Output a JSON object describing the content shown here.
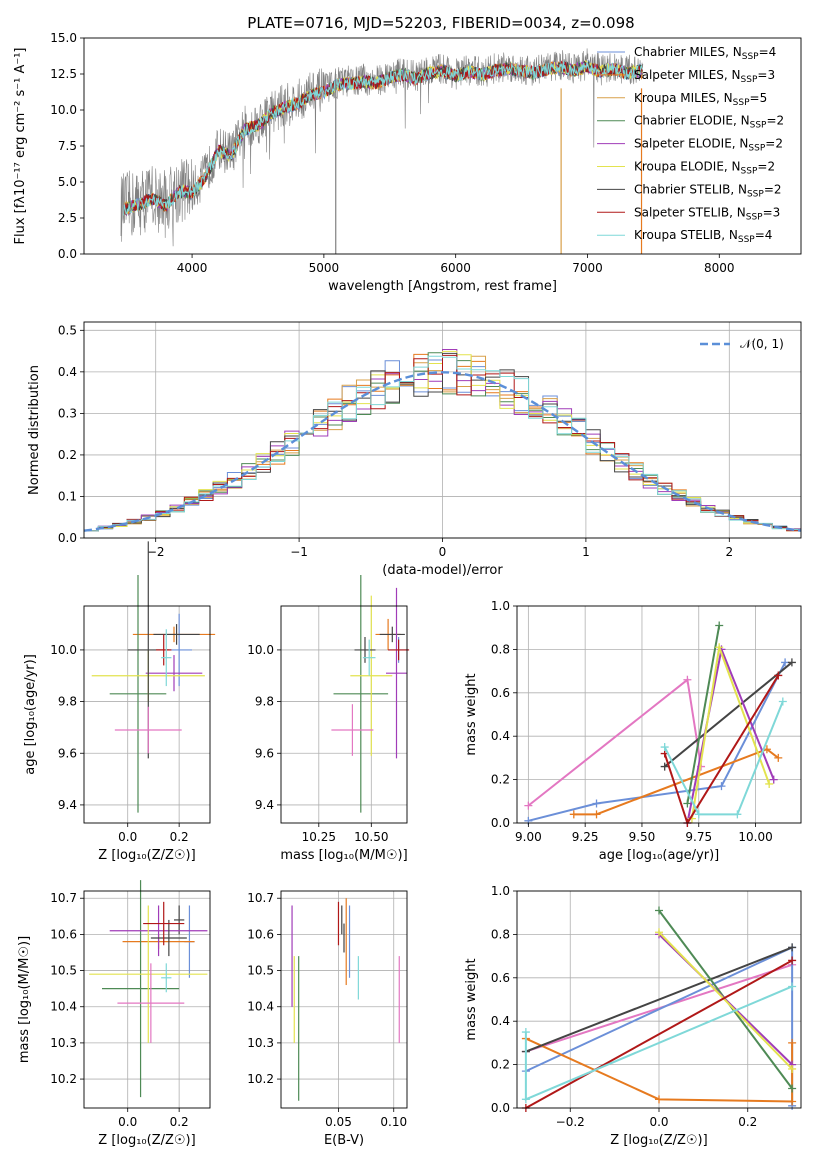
{
  "figure_title": "PLATE=0716, MJD=52203, FIBERID=0034, z=0.098",
  "chart_data": [
    {
      "id": "spectrum",
      "type": "line",
      "title": "PLATE=0716, MJD=52203, FIBERID=0034, z=0.098",
      "xlabel": "wavelength [Angstrom, rest frame]",
      "ylabel": "Flux [fλ10⁻¹⁷ erg cm⁻² s⁻¹ A⁻¹]",
      "xlim": [
        3180,
        8620
      ],
      "ylim": [
        0,
        15
      ],
      "xticks": [
        4000,
        5000,
        6000,
        7000,
        8000
      ],
      "yticks": [
        0.0,
        2.5,
        5.0,
        7.5,
        10.0,
        12.5,
        15.0
      ],
      "ytick_labels": [
        "0.0",
        "2.5",
        "5.0",
        "7.5",
        "10.0",
        "12.5",
        "15.0"
      ],
      "grid": false,
      "legend_position": "top-right",
      "data_series": {
        "name": "data",
        "color": "#808080",
        "x": [
          3460,
          3600,
          3700,
          3800,
          3900,
          4000,
          4100,
          4200,
          4300,
          4400,
          4500,
          4600,
          4700,
          4800,
          4900,
          5000,
          5100,
          5200,
          5300,
          5400,
          5500,
          5600,
          5700,
          5800,
          5900,
          6000,
          6100,
          6200,
          6300,
          6400,
          6500,
          6600,
          6700,
          6800,
          6900,
          7000,
          7100,
          7200,
          7300,
          7400,
          7420
        ],
        "y": [
          3.2,
          3.6,
          4.0,
          3.5,
          4.5,
          4.4,
          5.5,
          7.3,
          7.0,
          8.8,
          9.1,
          9.9,
          10.3,
          10.6,
          11.2,
          11.4,
          11.9,
          12.0,
          12.1,
          12.0,
          12.4,
          12.6,
          12.3,
          12.7,
          12.9,
          12.5,
          12.8,
          12.6,
          12.9,
          13.0,
          12.9,
          12.7,
          13.0,
          13.1,
          12.9,
          13.2,
          12.8,
          13.0,
          12.7,
          12.9,
          12.7
        ]
      },
      "series": [
        {
          "name": "Chabrier MILES, N$_{SSP}$=4",
          "color": "#6b8fd8"
        },
        {
          "name": "Salpeter MILES, N$_{SSP}$=3",
          "color": "#e67a1f"
        },
        {
          "name": "Kroupa MILES, N$_{SSP}$=5",
          "color": "#d8a04a"
        },
        {
          "name": "Chabrier ELODIE, N$_{SSP}$=2",
          "color": "#4e8a55"
        },
        {
          "name": "Salpeter ELODIE, N$_{SSP}$=2",
          "color": "#a03cb8"
        },
        {
          "name": "Kroupa ELODIE, N$_{SSP}$=2",
          "color": "#e3e34f"
        },
        {
          "name": "Chabrier STELIB, N$_{SSP}$=2",
          "color": "#444444"
        },
        {
          "name": "Salpeter STELIB, N$_{SSP}$=3",
          "color": "#b01818"
        },
        {
          "name": "Kroupa STELIB, N$_{SSP}$=4",
          "color": "#7fd8d8"
        }
      ],
      "legend": [
        {
          "pre": "Chabrier MILES, N",
          "sub": "SSP",
          "post": "=4"
        },
        {
          "pre": "Salpeter MILES, N",
          "sub": "SSP",
          "post": "=3"
        },
        {
          "pre": "Kroupa MILES, N",
          "sub": "SSP",
          "post": "=5"
        },
        {
          "pre": "Chabrier ELODIE, N",
          "sub": "SSP",
          "post": "=2"
        },
        {
          "pre": "Salpeter ELODIE, N",
          "sub": "SSP",
          "post": "=2"
        },
        {
          "pre": "Kroupa ELODIE, N",
          "sub": "SSP",
          "post": "=2"
        },
        {
          "pre": "Chabrier STELIB, N",
          "sub": "SSP",
          "post": "=2"
        },
        {
          "pre": "Salpeter STELIB, N",
          "sub": "SSP",
          "post": "=3"
        },
        {
          "pre": "Kroupa STELIB, N",
          "sub": "SSP",
          "post": "=4"
        }
      ]
    },
    {
      "id": "residuals",
      "type": "line",
      "xlabel": "(data-model)/error",
      "ylabel": "Normed distribution",
      "xlim": [
        -2.5,
        2.5
      ],
      "ylim": [
        0,
        0.52
      ],
      "xticks": [
        -2,
        -1,
        0,
        1,
        2
      ],
      "xtick_labels": [
        "−2",
        "−1",
        "0",
        "1",
        "2"
      ],
      "yticks": [
        0.0,
        0.1,
        0.2,
        0.3,
        0.4,
        0.5
      ],
      "ytick_labels": [
        "0.0",
        "0.1",
        "0.2",
        "0.3",
        "0.4",
        "0.5"
      ],
      "grid": true,
      "legend_position": "top-right",
      "legend": [
        {
          "name": "𝒩(0, 1)",
          "color": "#5b8fd8",
          "style": "dashed"
        }
      ],
      "bin_width": 0.1,
      "reference_curve": "gaussian mean 0 sigma 1"
    },
    {
      "id": "age_vs_Z",
      "type": "scatter",
      "xlabel": "Z [log₁₀(Z/Z☉)]",
      "ylabel": "age  [log₁₀(age/yr)]",
      "xlim": [
        -0.17,
        0.32
      ],
      "ylim": [
        9.33,
        10.17
      ],
      "xticks": [
        0.0,
        0.2
      ],
      "xtick_labels": [
        "0.0",
        "0.2"
      ],
      "yticks": [
        9.4,
        9.6,
        9.8,
        10.0
      ],
      "ytick_labels": [
        "9.4",
        "9.6",
        "9.8",
        "10.0"
      ],
      "grid": true,
      "points": [
        {
          "x": 0.2,
          "y": 10.0,
          "xerr": 0.05,
          "yerr": 0.14,
          "color": "#6b8fd8"
        },
        {
          "x": 0.18,
          "y": 10.06,
          "xerr": 0.16,
          "yerr": 0.03,
          "color": "#e67a1f"
        },
        {
          "x": 0.19,
          "y": 10.06,
          "xerr": 0.09,
          "yerr": 0.04,
          "color": "#444444"
        },
        {
          "x": 0.04,
          "y": 9.83,
          "xerr": 0.11,
          "yerr": 0.46,
          "color": "#4e8a55"
        },
        {
          "x": 0.18,
          "y": 9.91,
          "xerr": 0.11,
          "yerr": 0.07,
          "color": "#a03cb8"
        },
        {
          "x": 0.08,
          "y": 9.9,
          "xerr": 0.22,
          "yerr": 0.1,
          "color": "#e3e34f"
        },
        {
          "x": 0.08,
          "y": 10.0,
          "xerr": 0.08,
          "yerr": 0.42,
          "color": "#444444"
        },
        {
          "x": 0.14,
          "y": 10.0,
          "xerr": 0.03,
          "yerr": 0.06,
          "color": "#b01818"
        },
        {
          "x": 0.15,
          "y": 9.97,
          "xerr": 0.02,
          "yerr": 0.11,
          "color": "#7fd8d8"
        },
        {
          "x": 0.08,
          "y": 9.69,
          "xerr": 0.13,
          "yerr": 0.09,
          "color": "#e377c2"
        }
      ]
    },
    {
      "id": "age_vs_mass",
      "type": "scatter",
      "xlabel": "mass [log₁₀(M/M☉)]",
      "xlim": [
        10.07,
        10.67
      ],
      "ylim": [
        9.33,
        10.17
      ],
      "xticks": [
        10.25,
        10.5
      ],
      "xtick_labels": [
        "10.25",
        "10.50"
      ],
      "yticks": [
        9.4,
        9.6,
        9.8,
        10.0
      ],
      "ytick_labels": [
        "9.4",
        "9.6",
        "9.8",
        "10.0"
      ],
      "grid": true,
      "points": [
        {
          "x": 10.63,
          "y": 10.0,
          "xerr": 0.05,
          "yerr": 0.05,
          "color": "#6b8fd8"
        },
        {
          "x": 10.58,
          "y": 10.06,
          "xerr": 0.06,
          "yerr": 0.06,
          "color": "#e67a1f"
        },
        {
          "x": 10.6,
          "y": 10.06,
          "xerr": 0.06,
          "yerr": 0.03,
          "color": "#444444"
        },
        {
          "x": 10.45,
          "y": 9.83,
          "xerr": 0.13,
          "yerr": 0.46,
          "color": "#4e8a55"
        },
        {
          "x": 10.62,
          "y": 9.91,
          "xerr": 0.05,
          "yerr": 0.33,
          "color": "#a03cb8"
        },
        {
          "x": 10.5,
          "y": 9.9,
          "xerr": 0.1,
          "yerr": 0.31,
          "color": "#e3e34f"
        },
        {
          "x": 10.47,
          "y": 10.0,
          "xerr": 0.05,
          "yerr": 0.05,
          "color": "#444444"
        },
        {
          "x": 10.63,
          "y": 10.0,
          "xerr": 0.05,
          "yerr": 0.04,
          "color": "#b01818"
        },
        {
          "x": 10.49,
          "y": 9.97,
          "xerr": 0.03,
          "yerr": 0.07,
          "color": "#7fd8d8"
        },
        {
          "x": 10.41,
          "y": 9.69,
          "xerr": 0.1,
          "yerr": 0.1,
          "color": "#e377c2"
        }
      ]
    },
    {
      "id": "weight_vs_age",
      "type": "line",
      "xlabel": "age  [log₁₀(age/yr)]",
      "ylabel": "mass weight",
      "xlim": [
        8.95,
        10.2
      ],
      "ylim": [
        0,
        1
      ],
      "xticks": [
        9.0,
        9.25,
        9.5,
        9.75,
        10.0
      ],
      "xtick_labels": [
        "9.00",
        "9.25",
        "9.50",
        "9.75",
        "10.00"
      ],
      "yticks": [
        0.0,
        0.2,
        0.4,
        0.6,
        0.8,
        1.0
      ],
      "ytick_labels": [
        "0.0",
        "0.2",
        "0.4",
        "0.6",
        "0.8",
        "1.0"
      ],
      "grid": true,
      "series": [
        {
          "color": "#e377c2",
          "x": [
            9.0,
            9.7,
            9.76
          ],
          "y": [
            0.08,
            0.66,
            0.26
          ]
        },
        {
          "color": "#6b8fd8",
          "x": [
            9.0,
            9.3,
            9.85,
            10.13
          ],
          "y": [
            0.01,
            0.09,
            0.17,
            0.74
          ]
        },
        {
          "color": "#e67a1f",
          "x": [
            9.2,
            9.3,
            10.05,
            10.1
          ],
          "y": [
            0.04,
            0.04,
            0.34,
            0.3
          ]
        },
        {
          "color": "#444444",
          "x": [
            9.6,
            10.16
          ],
          "y": [
            0.26,
            0.74
          ]
        },
        {
          "color": "#4e8a55",
          "x": [
            9.7,
            9.84
          ],
          "y": [
            0.09,
            0.91
          ]
        },
        {
          "color": "#a03cb8",
          "x": [
            9.7,
            9.85,
            10.08
          ],
          "y": [
            0.0,
            0.8,
            0.2
          ]
        },
        {
          "color": "#e3e34f",
          "x": [
            9.72,
            9.84,
            10.06
          ],
          "y": [
            0.02,
            0.81,
            0.18
          ]
        },
        {
          "color": "#b01818",
          "x": [
            9.6,
            9.7,
            10.1
          ],
          "y": [
            0.32,
            0.0,
            0.68
          ]
        },
        {
          "color": "#7fd8d8",
          "x": [
            9.6,
            9.75,
            9.92,
            10.12
          ],
          "y": [
            0.35,
            0.04,
            0.04,
            0.56
          ]
        }
      ]
    },
    {
      "id": "mass_vs_Z",
      "type": "scatter",
      "xlabel": "Z [log₁₀(Z/Z☉)]",
      "ylabel": "mass [log₁₀(M/M☉)]",
      "xlim": [
        -0.17,
        0.32
      ],
      "ylim": [
        10.12,
        10.72
      ],
      "xticks": [
        0.0,
        0.2
      ],
      "xtick_labels": [
        "0.0",
        "0.2"
      ],
      "yticks": [
        10.2,
        10.3,
        10.4,
        10.5,
        10.6,
        10.7
      ],
      "ytick_labels": [
        "10.2",
        "10.3",
        "10.4",
        "10.5",
        "10.6",
        "10.7"
      ],
      "grid": true,
      "points": [
        {
          "x": 0.24,
          "y": 10.58,
          "xerr": 0.02,
          "yerr": 0.1,
          "color": "#6b8fd8"
        },
        {
          "x": 0.12,
          "y": 10.58,
          "xerr": 0.14,
          "yerr": 0.02,
          "color": "#e67a1f"
        },
        {
          "x": 0.2,
          "y": 10.64,
          "xerr": 0.02,
          "yerr": 0.04,
          "color": "#444444"
        },
        {
          "x": 0.05,
          "y": 10.45,
          "xerr": 0.15,
          "yerr": 0.3,
          "color": "#4e8a55"
        },
        {
          "x": 0.12,
          "y": 10.61,
          "xerr": 0.19,
          "yerr": 0.07,
          "color": "#a03cb8"
        },
        {
          "x": 0.08,
          "y": 10.49,
          "xerr": 0.23,
          "yerr": 0.19,
          "color": "#e3e34f"
        },
        {
          "x": 0.16,
          "y": 10.59,
          "xerr": 0.07,
          "yerr": 0.05,
          "color": "#444444"
        },
        {
          "x": 0.14,
          "y": 10.63,
          "xerr": 0.08,
          "yerr": 0.06,
          "color": "#b01818"
        },
        {
          "x": 0.15,
          "y": 10.48,
          "xerr": 0.02,
          "yerr": 0.04,
          "color": "#7fd8d8"
        },
        {
          "x": 0.09,
          "y": 10.41,
          "xerr": 0.13,
          "yerr": 0.11,
          "color": "#e377c2"
        }
      ]
    },
    {
      "id": "mass_vs_ebv",
      "type": "scatter",
      "xlabel": "E(B-V)",
      "xlim": [
        -0.002,
        0.112
      ],
      "ylim": [
        10.12,
        10.72
      ],
      "xticks": [
        0.05,
        0.1
      ],
      "xtick_labels": [
        "0.05",
        "0.10"
      ],
      "yticks": [
        10.2,
        10.3,
        10.4,
        10.5,
        10.6,
        10.7
      ],
      "ytick_labels": [
        "10.2",
        "10.3",
        "10.4",
        "10.5",
        "10.6",
        "10.7"
      ],
      "grid": true,
      "points": [
        {
          "x": 0.06,
          "y": 10.58,
          "xerr": 0,
          "yerr": 0.1,
          "color": "#6b8fd8"
        },
        {
          "x": 0.057,
          "y": 10.58,
          "xerr": 0,
          "yerr": 0.12,
          "color": "#e67a1f"
        },
        {
          "x": 0.053,
          "y": 10.64,
          "xerr": 0,
          "yerr": 0.04,
          "color": "#444444"
        },
        {
          "x": 0.014,
          "y": 10.34,
          "xerr": 0,
          "yerr": 0.2,
          "color": "#4e8a55"
        },
        {
          "x": 0.008,
          "y": 10.54,
          "xerr": 0,
          "yerr": 0.14,
          "color": "#a03cb8"
        },
        {
          "x": 0.01,
          "y": 10.42,
          "xerr": 0,
          "yerr": 0.12,
          "color": "#e3e34f"
        },
        {
          "x": 0.055,
          "y": 10.59,
          "xerr": 0,
          "yerr": 0.04,
          "color": "#444444"
        },
        {
          "x": 0.05,
          "y": 10.63,
          "xerr": 0,
          "yerr": 0.06,
          "color": "#b01818"
        },
        {
          "x": 0.068,
          "y": 10.48,
          "xerr": 0,
          "yerr": 0.06,
          "color": "#7fd8d8"
        },
        {
          "x": 0.105,
          "y": 10.42,
          "xerr": 0,
          "yerr": 0.12,
          "color": "#e377c2"
        }
      ]
    },
    {
      "id": "weight_vs_Z",
      "type": "line",
      "xlabel": "Z [log₁₀(Z/Z☉)]",
      "ylabel": "mass weight",
      "xlim": [
        -0.32,
        0.32
      ],
      "ylim": [
        0,
        1
      ],
      "xticks": [
        -0.2,
        0.0,
        0.2
      ],
      "xtick_labels": [
        "−0.2",
        "0.0",
        "0.2"
      ],
      "yticks": [
        0.0,
        0.2,
        0.4,
        0.6,
        0.8,
        1.0
      ],
      "ytick_labels": [
        "0.0",
        "0.2",
        "0.4",
        "0.6",
        "0.8",
        "1.0"
      ],
      "grid": true,
      "series": [
        {
          "color": "#e377c2",
          "x": [
            -0.3,
            0.3
          ],
          "y": [
            0.26,
            0.66
          ]
        },
        {
          "color": "#6b8fd8",
          "x": [
            -0.3,
            0.3,
            0.3
          ],
          "y": [
            0.17,
            0.74,
            0.01
          ]
        },
        {
          "color": "#e67a1f",
          "x": [
            -0.3,
            0.0,
            0.3,
            0.3
          ],
          "y": [
            0.32,
            0.04,
            0.03,
            0.3
          ]
        },
        {
          "color": "#444444",
          "x": [
            -0.3,
            0.3
          ],
          "y": [
            0.26,
            0.74
          ]
        },
        {
          "color": "#4e8a55",
          "x": [
            0.0,
            0.3
          ],
          "y": [
            0.91,
            0.09
          ]
        },
        {
          "color": "#a03cb8",
          "x": [
            0.0,
            0.3
          ],
          "y": [
            0.8,
            0.2
          ]
        },
        {
          "color": "#e3e34f",
          "x": [
            0.0,
            0.3
          ],
          "y": [
            0.81,
            0.18
          ]
        },
        {
          "color": "#b01818",
          "x": [
            -0.3,
            0.3
          ],
          "y": [
            0.0,
            0.68
          ]
        },
        {
          "color": "#7fd8d8",
          "x": [
            -0.3,
            -0.3,
            0.3
          ],
          "y": [
            0.35,
            0.04,
            0.56
          ]
        }
      ]
    }
  ]
}
